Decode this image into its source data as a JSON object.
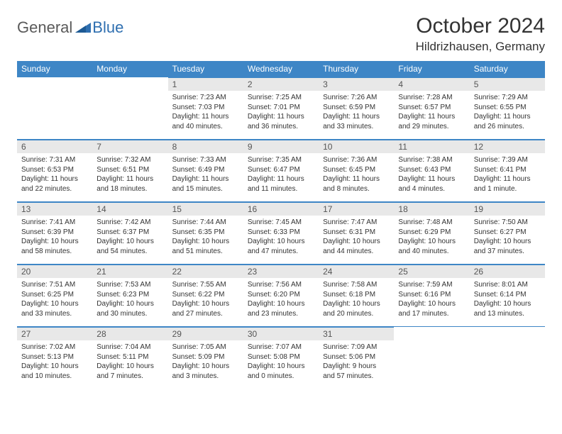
{
  "brand": {
    "general": "General",
    "blue": "Blue"
  },
  "title": "October 2024",
  "location": "Hildrizhausen, Germany",
  "colors": {
    "header_bg": "#3e86c6",
    "header_text": "#ffffff",
    "daynum_bg": "#e8e8e8",
    "daynum_text": "#555555",
    "border": "#3e86c6",
    "body_text": "#333333",
    "logo_gray": "#5a5a5a",
    "logo_blue": "#2f6fb0"
  },
  "weekdays": [
    "Sunday",
    "Monday",
    "Tuesday",
    "Wednesday",
    "Thursday",
    "Friday",
    "Saturday"
  ],
  "weeks": [
    [
      null,
      null,
      {
        "n": "1",
        "sr": "Sunrise: 7:23 AM",
        "ss": "Sunset: 7:03 PM",
        "d1": "Daylight: 11 hours",
        "d2": "and 40 minutes."
      },
      {
        "n": "2",
        "sr": "Sunrise: 7:25 AM",
        "ss": "Sunset: 7:01 PM",
        "d1": "Daylight: 11 hours",
        "d2": "and 36 minutes."
      },
      {
        "n": "3",
        "sr": "Sunrise: 7:26 AM",
        "ss": "Sunset: 6:59 PM",
        "d1": "Daylight: 11 hours",
        "d2": "and 33 minutes."
      },
      {
        "n": "4",
        "sr": "Sunrise: 7:28 AM",
        "ss": "Sunset: 6:57 PM",
        "d1": "Daylight: 11 hours",
        "d2": "and 29 minutes."
      },
      {
        "n": "5",
        "sr": "Sunrise: 7:29 AM",
        "ss": "Sunset: 6:55 PM",
        "d1": "Daylight: 11 hours",
        "d2": "and 26 minutes."
      }
    ],
    [
      {
        "n": "6",
        "sr": "Sunrise: 7:31 AM",
        "ss": "Sunset: 6:53 PM",
        "d1": "Daylight: 11 hours",
        "d2": "and 22 minutes."
      },
      {
        "n": "7",
        "sr": "Sunrise: 7:32 AM",
        "ss": "Sunset: 6:51 PM",
        "d1": "Daylight: 11 hours",
        "d2": "and 18 minutes."
      },
      {
        "n": "8",
        "sr": "Sunrise: 7:33 AM",
        "ss": "Sunset: 6:49 PM",
        "d1": "Daylight: 11 hours",
        "d2": "and 15 minutes."
      },
      {
        "n": "9",
        "sr": "Sunrise: 7:35 AM",
        "ss": "Sunset: 6:47 PM",
        "d1": "Daylight: 11 hours",
        "d2": "and 11 minutes."
      },
      {
        "n": "10",
        "sr": "Sunrise: 7:36 AM",
        "ss": "Sunset: 6:45 PM",
        "d1": "Daylight: 11 hours",
        "d2": "and 8 minutes."
      },
      {
        "n": "11",
        "sr": "Sunrise: 7:38 AM",
        "ss": "Sunset: 6:43 PM",
        "d1": "Daylight: 11 hours",
        "d2": "and 4 minutes."
      },
      {
        "n": "12",
        "sr": "Sunrise: 7:39 AM",
        "ss": "Sunset: 6:41 PM",
        "d1": "Daylight: 11 hours",
        "d2": "and 1 minute."
      }
    ],
    [
      {
        "n": "13",
        "sr": "Sunrise: 7:41 AM",
        "ss": "Sunset: 6:39 PM",
        "d1": "Daylight: 10 hours",
        "d2": "and 58 minutes."
      },
      {
        "n": "14",
        "sr": "Sunrise: 7:42 AM",
        "ss": "Sunset: 6:37 PM",
        "d1": "Daylight: 10 hours",
        "d2": "and 54 minutes."
      },
      {
        "n": "15",
        "sr": "Sunrise: 7:44 AM",
        "ss": "Sunset: 6:35 PM",
        "d1": "Daylight: 10 hours",
        "d2": "and 51 minutes."
      },
      {
        "n": "16",
        "sr": "Sunrise: 7:45 AM",
        "ss": "Sunset: 6:33 PM",
        "d1": "Daylight: 10 hours",
        "d2": "and 47 minutes."
      },
      {
        "n": "17",
        "sr": "Sunrise: 7:47 AM",
        "ss": "Sunset: 6:31 PM",
        "d1": "Daylight: 10 hours",
        "d2": "and 44 minutes."
      },
      {
        "n": "18",
        "sr": "Sunrise: 7:48 AM",
        "ss": "Sunset: 6:29 PM",
        "d1": "Daylight: 10 hours",
        "d2": "and 40 minutes."
      },
      {
        "n": "19",
        "sr": "Sunrise: 7:50 AM",
        "ss": "Sunset: 6:27 PM",
        "d1": "Daylight: 10 hours",
        "d2": "and 37 minutes."
      }
    ],
    [
      {
        "n": "20",
        "sr": "Sunrise: 7:51 AM",
        "ss": "Sunset: 6:25 PM",
        "d1": "Daylight: 10 hours",
        "d2": "and 33 minutes."
      },
      {
        "n": "21",
        "sr": "Sunrise: 7:53 AM",
        "ss": "Sunset: 6:23 PM",
        "d1": "Daylight: 10 hours",
        "d2": "and 30 minutes."
      },
      {
        "n": "22",
        "sr": "Sunrise: 7:55 AM",
        "ss": "Sunset: 6:22 PM",
        "d1": "Daylight: 10 hours",
        "d2": "and 27 minutes."
      },
      {
        "n": "23",
        "sr": "Sunrise: 7:56 AM",
        "ss": "Sunset: 6:20 PM",
        "d1": "Daylight: 10 hours",
        "d2": "and 23 minutes."
      },
      {
        "n": "24",
        "sr": "Sunrise: 7:58 AM",
        "ss": "Sunset: 6:18 PM",
        "d1": "Daylight: 10 hours",
        "d2": "and 20 minutes."
      },
      {
        "n": "25",
        "sr": "Sunrise: 7:59 AM",
        "ss": "Sunset: 6:16 PM",
        "d1": "Daylight: 10 hours",
        "d2": "and 17 minutes."
      },
      {
        "n": "26",
        "sr": "Sunrise: 8:01 AM",
        "ss": "Sunset: 6:14 PM",
        "d1": "Daylight: 10 hours",
        "d2": "and 13 minutes."
      }
    ],
    [
      {
        "n": "27",
        "sr": "Sunrise: 7:02 AM",
        "ss": "Sunset: 5:13 PM",
        "d1": "Daylight: 10 hours",
        "d2": "and 10 minutes."
      },
      {
        "n": "28",
        "sr": "Sunrise: 7:04 AM",
        "ss": "Sunset: 5:11 PM",
        "d1": "Daylight: 10 hours",
        "d2": "and 7 minutes."
      },
      {
        "n": "29",
        "sr": "Sunrise: 7:05 AM",
        "ss": "Sunset: 5:09 PM",
        "d1": "Daylight: 10 hours",
        "d2": "and 3 minutes."
      },
      {
        "n": "30",
        "sr": "Sunrise: 7:07 AM",
        "ss": "Sunset: 5:08 PM",
        "d1": "Daylight: 10 hours",
        "d2": "and 0 minutes."
      },
      {
        "n": "31",
        "sr": "Sunrise: 7:09 AM",
        "ss": "Sunset: 5:06 PM",
        "d1": "Daylight: 9 hours",
        "d2": "and 57 minutes."
      },
      null,
      null
    ]
  ]
}
